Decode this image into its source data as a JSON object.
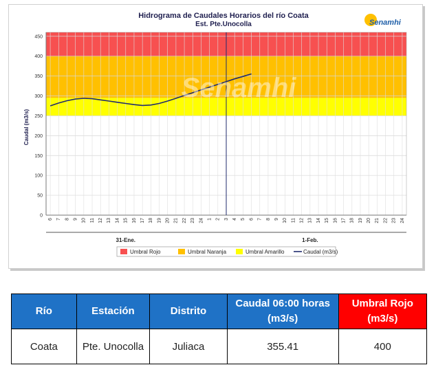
{
  "chart_data": {
    "type": "line",
    "title": "Hidrograma de Caudales Horarios del río Coata",
    "subtitle": "Est. Pte.Unocolla",
    "ylabel": "Caudal  (m3/s)",
    "ylim": [
      0,
      460
    ],
    "yticks": [
      0,
      50,
      100,
      150,
      200,
      250,
      300,
      350,
      400,
      450
    ],
    "hours_labels": [
      "6",
      "7",
      "8",
      "9",
      "10",
      "11",
      "12",
      "13",
      "14",
      "15",
      "16",
      "17",
      "18",
      "19",
      "20",
      "21",
      "22",
      "23",
      "24",
      "1",
      "2",
      "3",
      "4",
      "5",
      "6",
      "7",
      "8",
      "9",
      "10",
      "11",
      "12",
      "13",
      "14",
      "15",
      "16",
      "17",
      "18",
      "19",
      "20",
      "21",
      "22",
      "23",
      "24"
    ],
    "date_labels": [
      {
        "text": "31-Ene.",
        "hour_index": 9
      },
      {
        "text": "1-Feb.",
        "hour_index": 31
      }
    ],
    "current_time_index": 21,
    "bands": [
      {
        "name": "Umbral Rojo",
        "from": 400,
        "to": 460,
        "color": "#f75050"
      },
      {
        "name": "Umbral Naranja",
        "from": 295,
        "to": 400,
        "color": "#ffc000"
      },
      {
        "name": "Umbral Amarillo",
        "from": 250,
        "to": 295,
        "color": "#ffff00"
      }
    ],
    "series": [
      {
        "name": "Caudal (m3/s)",
        "color": "#1f2a6e",
        "x_index": [
          0,
          1,
          2,
          3,
          4,
          5,
          6,
          7,
          8,
          9,
          10,
          11,
          12,
          13,
          14,
          15,
          16,
          17,
          18,
          19,
          20,
          21,
          22,
          23,
          24
        ],
        "values": [
          275,
          282,
          288,
          292,
          294,
          293,
          290,
          287,
          284,
          281,
          278,
          276,
          277,
          281,
          287,
          294,
          301,
          308,
          315,
          322,
          329,
          336,
          343,
          349,
          355.41
        ]
      }
    ],
    "legend": [
      "Umbral Rojo",
      "Umbral Naranja",
      "Umbral Amarillo",
      "Caudal (m3/s)"
    ],
    "legend_position": "bottom",
    "watermark": "Senamhi"
  },
  "logo": {
    "text": "Senamhi"
  },
  "table": {
    "headers": [
      "Río",
      "Estación",
      "Distrito",
      "Caudal 06:00 horas (m3/s)",
      "Umbral Rojo (m3/s)"
    ],
    "row": [
      "Coata",
      "Pte. Unocolla",
      "Juliaca",
      "355.41",
      "400"
    ],
    "colors": {
      "header_blue": "#1f72c6",
      "header_red": "#ff0000"
    }
  }
}
